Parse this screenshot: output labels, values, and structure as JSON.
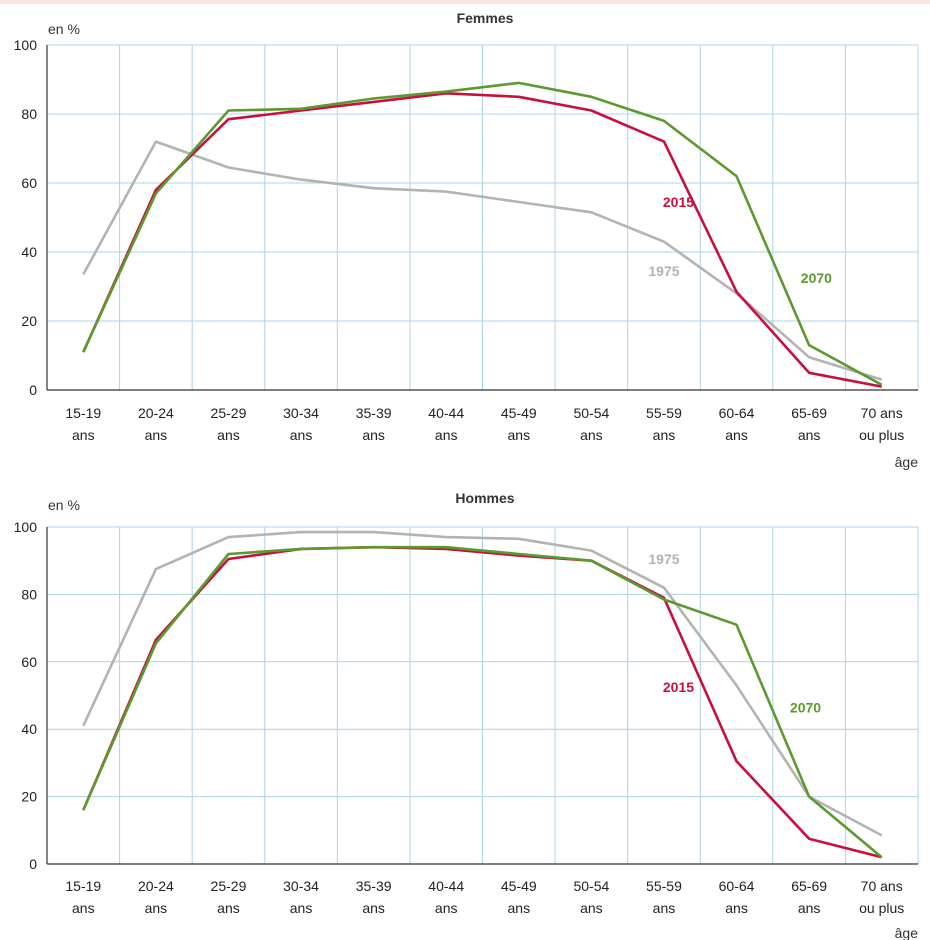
{
  "chart_data": [
    {
      "type": "line",
      "title": "Femmes",
      "ylabel": "en %",
      "xlabel": "âge",
      "ylim": [
        0,
        100
      ],
      "yticks": [
        0,
        20,
        40,
        60,
        80,
        100
      ],
      "grid": true,
      "categories": [
        [
          "15-19",
          "ans"
        ],
        [
          "20-24",
          "ans"
        ],
        [
          "25-29",
          "ans"
        ],
        [
          "30-34",
          "ans"
        ],
        [
          "35-39",
          "ans"
        ],
        [
          "40-44",
          "ans"
        ],
        [
          "45-49",
          "ans"
        ],
        [
          "50-54",
          "ans"
        ],
        [
          "55-59",
          "ans"
        ],
        [
          "60-64",
          "ans"
        ],
        [
          "65-69",
          "ans"
        ],
        [
          "70 ans",
          "ou plus"
        ]
      ],
      "series": [
        {
          "name": "1975",
          "color": "#b3b3b3",
          "values": [
            33.5,
            72,
            64.5,
            61,
            58.5,
            57.5,
            54.5,
            51.5,
            43,
            28,
            9.5,
            3
          ],
          "label_pos": [
            8,
            33
          ]
        },
        {
          "name": "2015",
          "color": "#c8103e",
          "values": [
            11,
            58,
            78.5,
            81,
            83.5,
            86,
            85,
            81,
            72,
            28.5,
            5,
            1
          ],
          "label_pos": [
            8.2,
            53
          ]
        },
        {
          "name": "2070",
          "color": "#5b9a2f",
          "values": [
            11,
            57,
            81,
            81.5,
            84.5,
            86.5,
            89,
            85,
            78,
            62,
            13,
            1.5
          ],
          "label_pos": [
            10.1,
            31
          ]
        }
      ]
    },
    {
      "type": "line",
      "title": "Hommes",
      "ylabel": "en %",
      "xlabel": "âge",
      "ylim": [
        0,
        100
      ],
      "yticks": [
        0,
        20,
        40,
        60,
        80,
        100
      ],
      "grid": true,
      "categories": [
        [
          "15-19",
          "ans"
        ],
        [
          "20-24",
          "ans"
        ],
        [
          "25-29",
          "ans"
        ],
        [
          "30-34",
          "ans"
        ],
        [
          "35-39",
          "ans"
        ],
        [
          "40-44",
          "ans"
        ],
        [
          "45-49",
          "ans"
        ],
        [
          "50-54",
          "ans"
        ],
        [
          "55-59",
          "ans"
        ],
        [
          "60-64",
          "ans"
        ],
        [
          "65-69",
          "ans"
        ],
        [
          "70 ans",
          "ou plus"
        ]
      ],
      "series": [
        {
          "name": "1975",
          "color": "#b3b3b3",
          "values": [
            41,
            87.5,
            97,
            98.5,
            98.5,
            97,
            96.5,
            93,
            82,
            53,
            20,
            8.5
          ],
          "label_pos": [
            8,
            89
          ]
        },
        {
          "name": "2015",
          "color": "#c8103e",
          "values": [
            16,
            66.5,
            90.5,
            93.5,
            94,
            93.5,
            91.5,
            90,
            79,
            30.5,
            7.5,
            2
          ],
          "label_pos": [
            8.2,
            51
          ]
        },
        {
          "name": "2070",
          "color": "#5b9a2f",
          "values": [
            16,
            65.5,
            92,
            93.5,
            94,
            94,
            92,
            90,
            78.5,
            71,
            20,
            2
          ],
          "label_pos": [
            9.95,
            45
          ]
        }
      ]
    }
  ]
}
